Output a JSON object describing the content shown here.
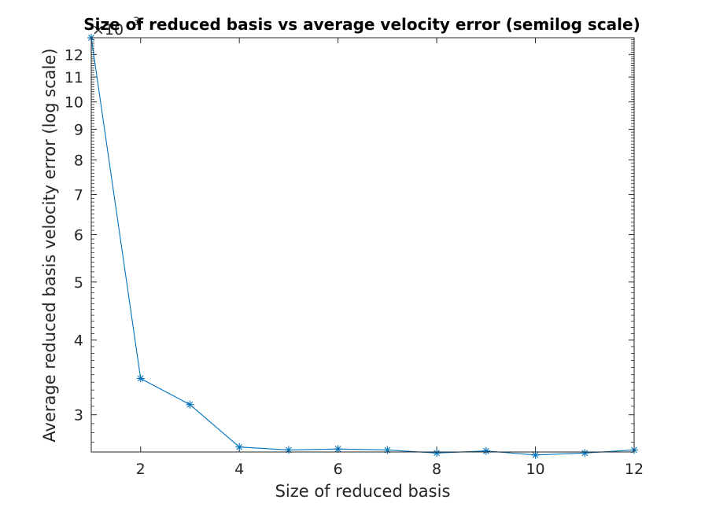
{
  "chart_data": {
    "type": "line",
    "title": "Size of reduced basis vs average velocity error (semilog scale)",
    "xlabel": "Size of reduced basis",
    "ylabel": "Average reduced basis velocity error (log scale)",
    "y_scale": "log",
    "y_multiplier_label": "×10",
    "y_multiplier_exponent": "-3",
    "x_ticks": [
      "2",
      "4",
      "6",
      "8",
      "10",
      "12"
    ],
    "y_ticks": [
      "3",
      "4",
      "5",
      "6",
      "7",
      "8",
      "9",
      "10",
      "11",
      "12"
    ],
    "xlim": [
      1,
      12
    ],
    "ylim": [
      2.6,
      12.8
    ],
    "grid": false,
    "marker": "asterisk",
    "color": "#0072BD",
    "series": [
      {
        "x": [
          1,
          2,
          3,
          4,
          5,
          6,
          7,
          8,
          9,
          10,
          11,
          12
        ],
        "values": [
          12.8,
          3.45,
          3.12,
          2.65,
          2.62,
          2.63,
          2.62,
          2.59,
          2.61,
          2.57,
          2.59,
          2.62
        ]
      }
    ]
  }
}
